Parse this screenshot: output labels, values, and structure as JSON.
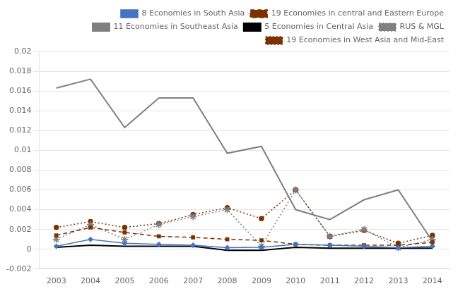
{
  "chart_data": {
    "type": "line",
    "x": [
      2003,
      2004,
      2005,
      2006,
      2007,
      2008,
      2009,
      2010,
      2011,
      2012,
      2013,
      2014
    ],
    "xlim": [
      2002.5,
      2014.5
    ],
    "xticks": [
      2003,
      2004,
      2005,
      2006,
      2007,
      2008,
      2009,
      2010,
      2011,
      2012,
      2013,
      2014
    ],
    "ylim": [
      -0.002,
      0.02
    ],
    "yticks": [
      -0.002,
      0,
      0.002,
      0.004,
      0.006,
      0.008,
      0.01,
      0.012,
      0.014,
      0.016,
      0.018,
      0.02
    ],
    "grid": "y",
    "legend": "upper right",
    "series": [
      {
        "name": "8 Economies in South Asia",
        "color": "#4472c4",
        "marker": "diamond",
        "line_style": "solid",
        "values": [
          0.0003,
          0.001,
          0.0006,
          0.0005,
          0.0004,
          0.00015,
          0.0002,
          0.0005,
          0.0004,
          0.0003,
          0.00015,
          0.0003
        ]
      },
      {
        "name": "19 Economies in central and Eastern Europe",
        "color": "#7b3200",
        "marker": "square",
        "line_style": "dashed",
        "values": [
          0.0014,
          0.0022,
          0.0017,
          0.0013,
          0.0012,
          0.001,
          0.0009,
          0.0005,
          0.0004,
          0.0004,
          0.0004,
          0.0007
        ]
      },
      {
        "name": "11 Economies in Southeast Asia",
        "color": "#808080",
        "marker": "none",
        "line_style": "solid",
        "values": [
          0.0163,
          0.0172,
          0.0123,
          0.0153,
          0.0153,
          0.0097,
          0.0104,
          0.004,
          0.003,
          0.005,
          0.006,
          0.0008
        ]
      },
      {
        "name": "5 Economies in Central Asia",
        "color": "#000000",
        "marker": "none",
        "line_style": "solid",
        "values": [
          0.0002,
          0.0004,
          0.0003,
          0.0003,
          0.0003,
          -0.0001,
          -0.0001,
          0.0002,
          0.0001,
          0.0001,
          0.0001,
          0.0001
        ]
      },
      {
        "name": "RUS & MGL",
        "color": "#808080",
        "marker": "star",
        "line_style": "dotted",
        "values": [
          0.001,
          0.0025,
          0.001,
          0.0025,
          0.0033,
          0.004,
          0.0003,
          0.006,
          0.0013,
          0.002,
          0.00015,
          0.001
        ]
      },
      {
        "name": "19 Economies in West Asia and Mid-East",
        "color": "#7b3200",
        "marker": "circle",
        "line_style": "dotted",
        "values": [
          0.0022,
          0.0028,
          0.0022,
          0.0026,
          0.0035,
          0.0042,
          0.0031,
          0.006,
          0.0013,
          0.0019,
          0.0006,
          0.0014
        ]
      }
    ]
  }
}
